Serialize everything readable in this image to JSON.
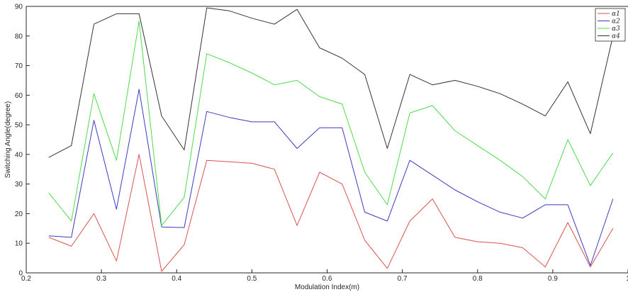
{
  "chart_data": {
    "type": "line",
    "xlabel": "Modulation Index(m)",
    "ylabel": "Switching Angle(degree)",
    "xlim": [
      0.2,
      1.0
    ],
    "ylim": [
      0,
      90
    ],
    "xticks": [
      "0.2",
      "0.3",
      "0.4",
      "0.5",
      "0.6",
      "0.7",
      "0.8",
      "0.9",
      "1"
    ],
    "yticks": [
      "0",
      "10",
      "20",
      "30",
      "40",
      "50",
      "60",
      "70",
      "80",
      "90"
    ],
    "grid": false,
    "legend_position": "top-right",
    "x": [
      0.23,
      0.26,
      0.29,
      0.32,
      0.35,
      0.38,
      0.41,
      0.44,
      0.47,
      0.5,
      0.53,
      0.56,
      0.59,
      0.62,
      0.65,
      0.68,
      0.71,
      0.74,
      0.77,
      0.8,
      0.83,
      0.86,
      0.89,
      0.92,
      0.95,
      0.98
    ],
    "series": [
      {
        "name": "α1",
        "color": "#d9534f",
        "values": [
          12,
          9,
          20,
          4,
          40,
          0.5,
          9.5,
          38,
          37.5,
          37,
          35,
          16,
          34,
          30,
          11,
          1.5,
          17.5,
          25,
          12,
          10.5,
          10,
          8.5,
          2,
          17,
          2,
          15
        ]
      },
      {
        "name": "α2",
        "color": "#3b3bbf",
        "values": [
          12.5,
          12,
          51.5,
          21.5,
          62,
          15.5,
          15.3,
          54.5,
          52.5,
          51,
          51,
          42,
          49,
          49,
          20.5,
          17.5,
          38,
          33,
          28,
          24,
          20.5,
          18.5,
          23,
          23,
          2.5,
          25
        ]
      },
      {
        "name": "α3",
        "color": "#4ddb4d",
        "values": [
          27,
          17.5,
          60.5,
          38,
          85,
          16,
          25.5,
          74,
          71,
          67.5,
          63.5,
          65,
          59.5,
          57,
          34,
          23,
          54,
          56.5,
          48,
          43,
          38,
          32.5,
          25,
          45,
          29.5,
          40.5
        ]
      },
      {
        "name": "α4",
        "color": "#333333",
        "values": [
          39,
          43,
          84,
          87.5,
          87.5,
          53,
          41.5,
          89.5,
          88.5,
          86,
          84,
          89,
          76,
          72.5,
          67,
          42,
          67,
          63.5,
          65,
          63,
          60.5,
          57,
          53,
          64.5,
          47,
          80
        ]
      }
    ]
  }
}
